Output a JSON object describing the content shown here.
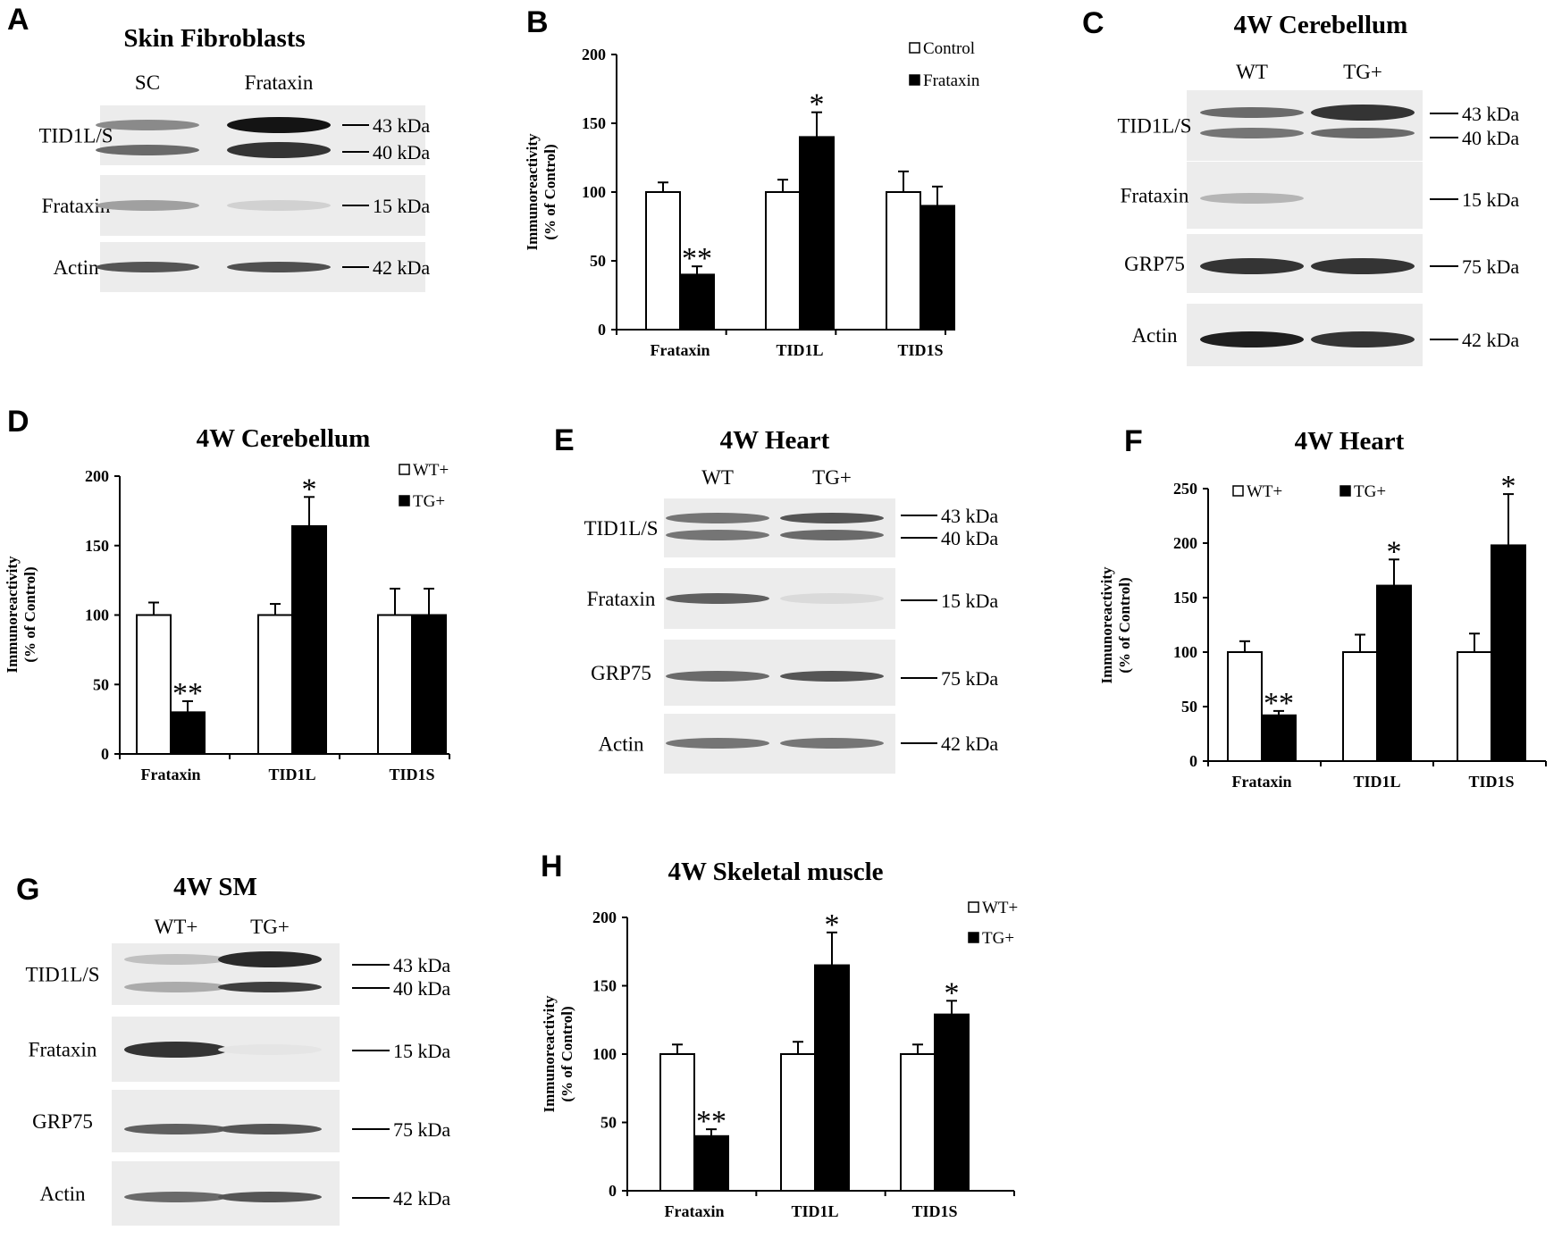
{
  "blots": [
    {
      "letter": "A",
      "title": "Skin Fibroblasts",
      "lanes": [
        "SC",
        "Frataxin"
      ],
      "rows": [
        {
          "name": "TID1L/S",
          "bands": [
            [
              0.45,
              1.0
            ],
            [
              0.6,
              0.85
            ]
          ],
          "sizes": [
            "43 kDa",
            "40 kDa"
          ]
        },
        {
          "name": "Frataxin",
          "bands": [
            [
              0.35,
              0.12
            ]
          ],
          "sizes": [
            "15 kDa"
          ]
        },
        {
          "name": "Actin",
          "bands": [
            [
              0.7,
              0.72
            ]
          ],
          "sizes": [
            "42 kDa"
          ]
        }
      ]
    },
    {
      "letter": "C",
      "title": "4W Cerebellum",
      "lanes": [
        "WT",
        "TG+"
      ],
      "rows": [
        {
          "name": "TID1L/S",
          "bands": [
            [
              0.6,
              0.85
            ],
            [
              0.55,
              0.6
            ]
          ],
          "sizes": [
            "43 kDa",
            "40 kDa"
          ]
        },
        {
          "name": "Frataxin",
          "bands": [
            [
              0.25,
              0.0
            ]
          ],
          "sizes": [
            "15 kDa"
          ]
        },
        {
          "name": "GRP75",
          "bands": [
            [
              0.85,
              0.85
            ]
          ],
          "sizes": [
            "75 kDa"
          ]
        },
        {
          "name": "Actin",
          "bands": [
            [
              0.95,
              0.85
            ]
          ],
          "sizes": [
            "42 kDa"
          ]
        }
      ]
    },
    {
      "letter": "E",
      "title": "4W Heart",
      "lanes": [
        "WT",
        "TG+"
      ],
      "rows": [
        {
          "name": "TID1L/S",
          "bands": [
            [
              0.55,
              0.7
            ],
            [
              0.55,
              0.6
            ]
          ],
          "sizes": [
            "43 kDa",
            "40 kDa"
          ]
        },
        {
          "name": "Frataxin",
          "bands": [
            [
              0.65,
              0.08
            ]
          ],
          "sizes": [
            "15 kDa"
          ]
        },
        {
          "name": "GRP75",
          "bands": [
            [
              0.6,
              0.7
            ]
          ],
          "sizes": [
            "75 kDa"
          ]
        },
        {
          "name": "Actin",
          "bands": [
            [
              0.55,
              0.55
            ]
          ],
          "sizes": [
            "42 kDa"
          ]
        }
      ]
    },
    {
      "letter": "G",
      "title": "4W SM",
      "lanes": [
        "WT+",
        "TG+"
      ],
      "rows": [
        {
          "name": "TID1L/S",
          "bands": [
            [
              0.2,
              0.9
            ],
            [
              0.3,
              0.8
            ]
          ],
          "sizes": [
            "43 kDa",
            "40 kDa"
          ]
        },
        {
          "name": "Frataxin",
          "bands": [
            [
              0.85,
              0.03
            ]
          ],
          "sizes": [
            "15 kDa"
          ]
        },
        {
          "name": "GRP75",
          "bands": [
            [
              0.65,
              0.7
            ]
          ],
          "sizes": [
            "75 kDa"
          ]
        },
        {
          "name": "Actin",
          "bands": [
            [
              0.6,
              0.7
            ]
          ],
          "sizes": [
            "42 kDa"
          ]
        }
      ]
    }
  ],
  "chart_data": [
    {
      "letter": "B",
      "type": "bar",
      "title": "",
      "ylabel": [
        "Immunoreactivity",
        "(% of Control)"
      ],
      "xlabel": "",
      "categories": [
        "Frataxin",
        "TID1L",
        "TID1S"
      ],
      "ylim": [
        0,
        200
      ],
      "yticks": [
        0,
        50,
        100,
        150,
        200
      ],
      "series": [
        {
          "name": "Control",
          "fill": "#ffffff",
          "values": [
            100,
            100,
            100
          ],
          "errors": [
            7,
            9,
            15
          ]
        },
        {
          "name": "Frataxin",
          "fill": "#000000",
          "values": [
            40,
            140,
            90
          ],
          "errors": [
            6,
            18,
            14
          ]
        }
      ],
      "significance": [
        [
          "",
          ""
        ],
        [
          "",
          ""
        ],
        [
          "",
          ""
        ]
      ],
      "sig_marks": [
        {
          "series": 1,
          "cat": 0,
          "text": "**"
        },
        {
          "series": 1,
          "cat": 1,
          "text": "*"
        }
      ],
      "legend": "top-right"
    },
    {
      "letter": "D",
      "type": "bar",
      "title": "4W Cerebellum",
      "ylabel": [
        "Immunoreactivity",
        "(% of Control)"
      ],
      "xlabel": "",
      "categories": [
        "Frataxin",
        "TID1L",
        "TID1S"
      ],
      "ylim": [
        0,
        200
      ],
      "yticks": [
        0,
        50,
        100,
        150,
        200
      ],
      "series": [
        {
          "name": "WT+",
          "fill": "#ffffff",
          "values": [
            100,
            100,
            100
          ],
          "errors": [
            9,
            8,
            19
          ]
        },
        {
          "name": "TG+",
          "fill": "#000000",
          "values": [
            30,
            164,
            100
          ],
          "errors": [
            8,
            21,
            19
          ]
        }
      ],
      "sig_marks": [
        {
          "series": 1,
          "cat": 0,
          "text": "**"
        },
        {
          "series": 1,
          "cat": 1,
          "text": "*"
        }
      ],
      "legend": "top-right"
    },
    {
      "letter": "F",
      "type": "bar",
      "title": "4W Heart",
      "ylabel": [
        "Immunoreactivity",
        "(% of Control)"
      ],
      "xlabel": "",
      "categories": [
        "Frataxin",
        "TID1L",
        "TID1S"
      ],
      "ylim": [
        0,
        250
      ],
      "yticks": [
        0,
        50,
        100,
        150,
        200,
        250
      ],
      "series": [
        {
          "name": "WT+",
          "fill": "#ffffff",
          "values": [
            100,
            100,
            100
          ],
          "errors": [
            10,
            16,
            17
          ]
        },
        {
          "name": "TG+",
          "fill": "#000000",
          "values": [
            42,
            161,
            198
          ],
          "errors": [
            4,
            24,
            47
          ]
        }
      ],
      "sig_marks": [
        {
          "series": 1,
          "cat": 0,
          "text": "**"
        },
        {
          "series": 1,
          "cat": 1,
          "text": "*"
        },
        {
          "series": 1,
          "cat": 2,
          "text": "*"
        }
      ],
      "legend": "top-left"
    },
    {
      "letter": "H",
      "type": "bar",
      "title": "4W Skeletal muscle",
      "ylabel": [
        "Immunoreactivity",
        "(% of Control)"
      ],
      "xlabel": "",
      "categories": [
        "Frataxin",
        "TID1L",
        "TID1S"
      ],
      "ylim": [
        0,
        200
      ],
      "yticks": [
        0,
        50,
        100,
        150,
        200
      ],
      "series": [
        {
          "name": "WT+",
          "fill": "#ffffff",
          "values": [
            100,
            100,
            100
          ],
          "errors": [
            7,
            9,
            7
          ]
        },
        {
          "name": "TG+",
          "fill": "#000000",
          "values": [
            40,
            165,
            129
          ],
          "errors": [
            5,
            24,
            10
          ]
        }
      ],
      "sig_marks": [
        {
          "series": 1,
          "cat": 0,
          "text": "**"
        },
        {
          "series": 1,
          "cat": 1,
          "text": "*"
        },
        {
          "series": 1,
          "cat": 2,
          "text": "*"
        }
      ],
      "legend": "top-right"
    }
  ]
}
